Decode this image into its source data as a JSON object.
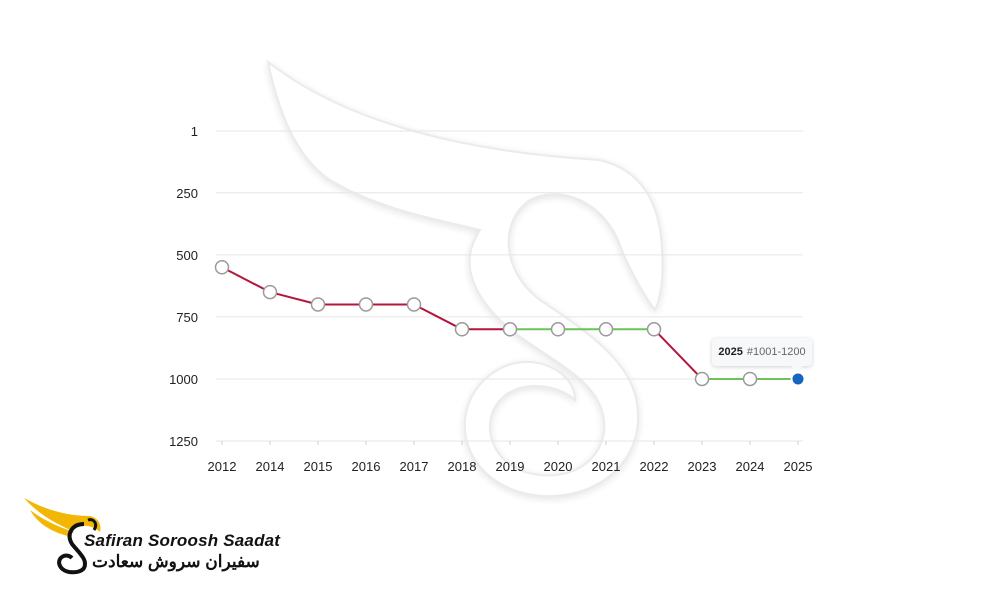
{
  "chart_data": {
    "type": "line",
    "y_inverted": true,
    "ylim": [
      1,
      1250
    ],
    "yticks": [
      "1",
      "250",
      "500",
      "750",
      "1000",
      "1250"
    ],
    "categories": [
      "2012",
      "2014",
      "2015",
      "2016",
      "2017",
      "2018",
      "2019",
      "2020",
      "2021",
      "2022",
      "2023",
      "2024",
      "2025"
    ],
    "values": [
      550,
      650,
      700,
      700,
      700,
      800,
      800,
      800,
      800,
      800,
      1000,
      1000,
      1000
    ],
    "colors": {
      "declining": "#b3163b",
      "stable": "#6cc35a",
      "highlight": "#1565c0",
      "grid": "#e6e6e6",
      "marker_stroke": "#9a9a9a"
    },
    "grid": true,
    "tooltip": {
      "year": "2025",
      "rank": "#1001-1200"
    }
  },
  "brand": {
    "name_en": "Safiran Soroosh Saadat",
    "name_fa": "سفیران سروش سعادت",
    "logo_icon": "swan-wing-logo",
    "logo_color": "#f2b705"
  }
}
